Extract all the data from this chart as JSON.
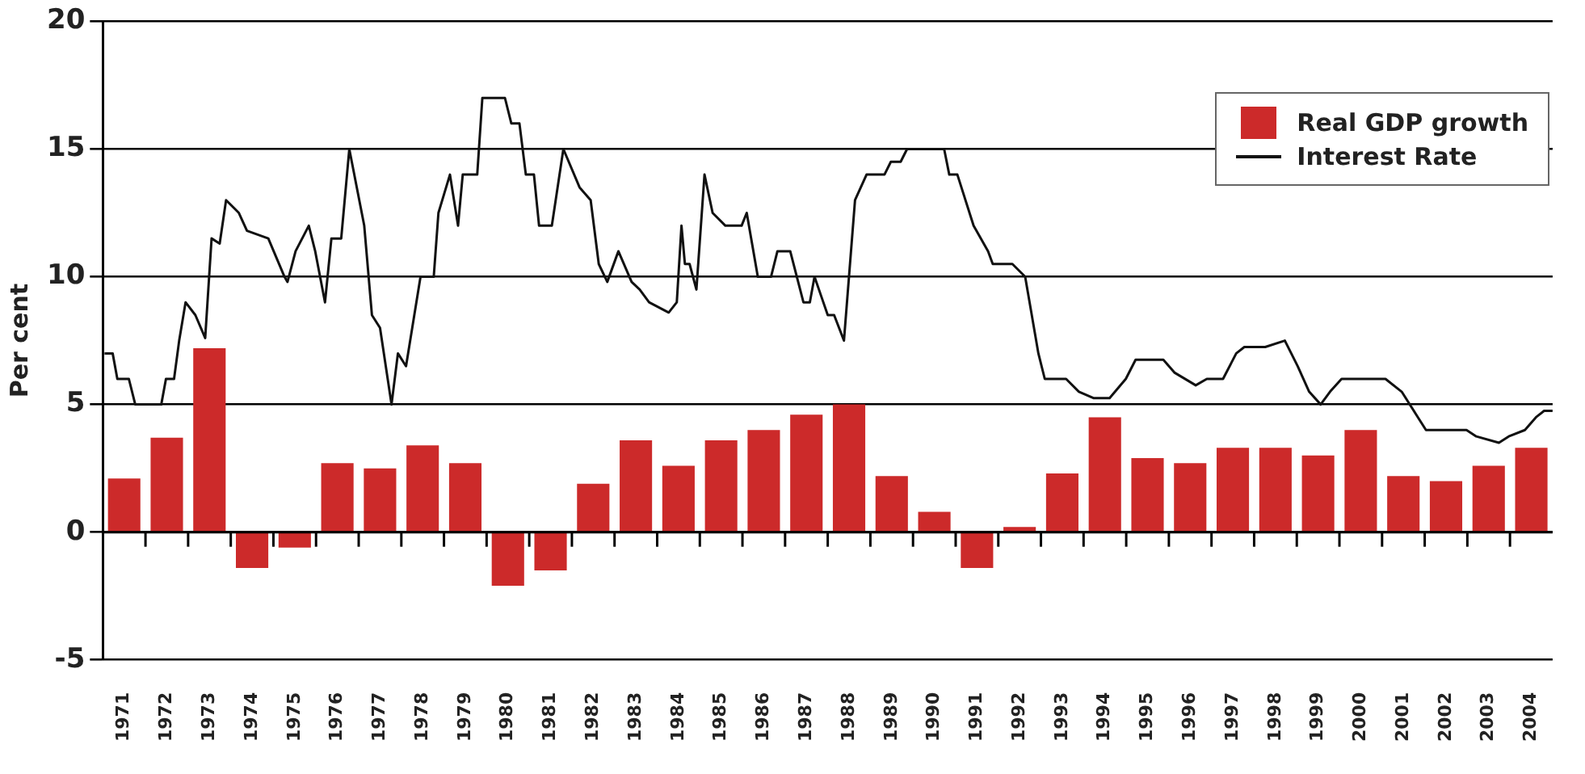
{
  "chart_data": {
    "type": "bar",
    "ylabel": "Per cent",
    "x": [
      1971,
      1972,
      1973,
      1974,
      1975,
      1976,
      1977,
      1978,
      1979,
      1980,
      1981,
      1982,
      1983,
      1984,
      1985,
      1986,
      1987,
      1988,
      1989,
      1990,
      1991,
      1992,
      1993,
      1994,
      1995,
      1996,
      1997,
      1998,
      1999,
      2000,
      2001,
      2002,
      2003,
      2004
    ],
    "series": [
      {
        "name": "Real GDP growth",
        "color": "#cc2a2a",
        "values": [
          2.1,
          3.7,
          7.2,
          -1.4,
          -0.6,
          2.7,
          2.5,
          3.4,
          2.7,
          -2.1,
          -1.5,
          1.9,
          3.6,
          2.6,
          3.6,
          4.0,
          4.6,
          5.0,
          2.2,
          0.8,
          -1.4,
          0.2,
          2.3,
          4.5,
          2.9,
          2.7,
          3.3,
          3.3,
          3.0,
          4.0,
          2.2,
          2.0,
          2.6,
          3.3
        ]
      },
      {
        "name": "Interest Rate",
        "type": "line",
        "color": "#111111",
        "x": [
          1970.54,
          1970.73,
          1970.84,
          1971.11,
          1971.26,
          1971.87,
          1971.98,
          1972.17,
          1972.29,
          1972.44,
          1972.67,
          1972.9,
          1973.05,
          1973.24,
          1973.39,
          1973.69,
          1973.88,
          1974.38,
          1974.76,
          1974.83,
          1975.02,
          1975.33,
          1975.48,
          1975.71,
          1975.86,
          1976.09,
          1976.28,
          1976.63,
          1976.81,
          1977.0,
          1977.27,
          1977.42,
          1977.61,
          1977.95,
          1978.26,
          1978.37,
          1978.64,
          1978.83,
          1978.94,
          1979.28,
          1979.4,
          1979.93,
          1980.08,
          1980.27,
          1980.42,
          1980.61,
          1980.73,
          1981.03,
          1981.3,
          1981.68,
          1981.94,
          1982.13,
          1982.33,
          1982.59,
          1982.9,
          1983.09,
          1983.31,
          1983.77,
          1983.96,
          1984.07,
          1984.15,
          1984.26,
          1984.42,
          1984.61,
          1984.8,
          1985.1,
          1985.48,
          1985.6,
          1985.86,
          1986.17,
          1986.32,
          1986.62,
          1986.93,
          1987.08,
          1987.19,
          1987.5,
          1987.65,
          1987.88,
          1988.14,
          1988.41,
          1988.83,
          1988.98,
          1989.21,
          1989.36,
          1990.23,
          1990.35,
          1990.54,
          1990.92,
          1991.26,
          1991.37,
          1991.83,
          1992.13,
          1992.44,
          1992.59,
          1993.09,
          1993.39,
          1993.73,
          1994.11,
          1994.49,
          1994.72,
          1995.37,
          1995.63,
          1996.13,
          1996.39,
          1996.77,
          1997.08,
          1997.27,
          1997.76,
          1998.22,
          1998.52,
          1998.79,
          1999.06,
          1999.28,
          1999.55,
          2000.58,
          2000.96,
          2001.34,
          2001.53,
          2002.48,
          2002.71,
          2003.24,
          2003.47,
          2003.85,
          2004.11,
          2004.3,
          2004.5
        ],
        "values": [
          7,
          7,
          6,
          6,
          5,
          5,
          6,
          6,
          7.5,
          9,
          8.5,
          7.6,
          11.5,
          11.3,
          13,
          12.5,
          11.8,
          11.5,
          10,
          9.8,
          11,
          12,
          11,
          9,
          11.5,
          11.5,
          15,
          12,
          8.5,
          8,
          5,
          7,
          6.5,
          10,
          10,
          12.5,
          14,
          12,
          14,
          14,
          17,
          17,
          16,
          16,
          14,
          14,
          12,
          12,
          15,
          13.5,
          13,
          10.5,
          9.8,
          11,
          9.8,
          9.5,
          9,
          8.6,
          9,
          12,
          10.5,
          10.5,
          9.5,
          14,
          12.5,
          12,
          12,
          12.5,
          10,
          10,
          11,
          11,
          9,
          9,
          10,
          8.5,
          8.5,
          7.5,
          13,
          14,
          14,
          14.5,
          14.5,
          15,
          15,
          14,
          14,
          12,
          11,
          10.5,
          10.5,
          10,
          7,
          6,
          6,
          5.5,
          5.25,
          5.25,
          6,
          6.75,
          6.75,
          6.25,
          5.75,
          6,
          6,
          7,
          7.25,
          7.25,
          7.5,
          6.5,
          5.5,
          5,
          5.5,
          6,
          6,
          5.5,
          4.5,
          4,
          4,
          3.75,
          3.5,
          3.75,
          4,
          4.5,
          4.75,
          4.75
        ]
      }
    ],
    "xlim": [
      1970.5,
      2004.5
    ],
    "xticks": [
      1971,
      1972,
      1973,
      1974,
      1975,
      1976,
      1977,
      1978,
      1979,
      1980,
      1981,
      1982,
      1983,
      1984,
      1985,
      1986,
      1987,
      1988,
      1989,
      1990,
      1991,
      1992,
      1993,
      1994,
      1995,
      1996,
      1997,
      1998,
      1999,
      2000,
      2001,
      2002,
      2003,
      2004
    ],
    "ylim": [
      -5,
      20
    ],
    "yticks": [
      -5,
      0,
      5,
      10,
      15,
      20
    ],
    "grid": "y",
    "legend": "top right"
  }
}
